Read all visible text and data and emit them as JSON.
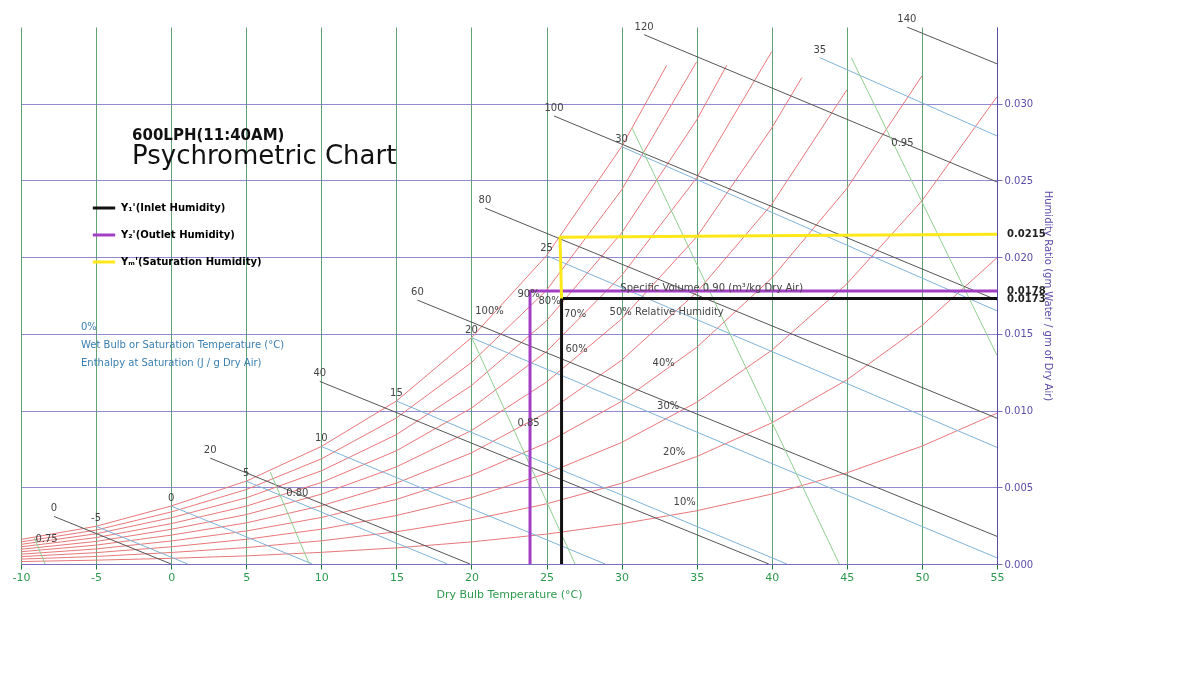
{
  "chart_data": {
    "type": "line",
    "title": "600LPH(11:40AM)",
    "subtitle": "Psychrometric Chart",
    "xlabel": "Dry Bulb Temperature (°C)",
    "ylabel": "Humidity Ratio (gm Water / gm of Dry Air)",
    "xlim": [
      -10,
      55
    ],
    "xticks": [
      -10,
      -5,
      0,
      5,
      10,
      15,
      20,
      25,
      30,
      35,
      40,
      45,
      50,
      55
    ],
    "ylim": [
      0,
      0.035
    ],
    "yticks": [
      {
        "value": 0,
        "label": "0.000"
      },
      0.005,
      {
        "value": 0.01,
        "label": "0.010"
      },
      0.015,
      {
        "value": 0.02,
        "label": "0.020"
      },
      0.025,
      {
        "value": 0.03,
        "label": "0.030"
      }
    ],
    "grid": true,
    "legend": "top left",
    "series": [
      {
        "color": "#e8777a",
        "x": [
          -10,
          -5,
          0,
          5,
          10,
          15,
          20,
          25,
          30,
          35,
          40,
          45,
          50,
          55
        ],
        "values": [
          0.00016,
          0.00025,
          0.00037,
          0.00053,
          0.00076,
          0.00105,
          0.00144,
          0.00195,
          0.00262,
          0.00347,
          0.00456,
          0.00594,
          0.00768,
          0.00983
        ]
      },
      {
        "color": "#e8777a",
        "x": [
          -10,
          -5,
          0,
          5,
          10,
          15,
          20,
          25,
          30,
          35,
          40,
          45,
          50,
          55
        ],
        "values": [
          0.00032,
          0.00049,
          0.00075,
          0.00107,
          0.00151,
          0.0021,
          0.00288,
          0.00392,
          0.00526,
          0.007,
          0.0092,
          0.012,
          0.01554,
          0.01996
        ]
      },
      {
        "color": "#e8777a",
        "x": [
          -10,
          -5,
          0,
          5,
          10,
          15,
          20,
          25,
          30,
          35,
          40,
          45,
          50,
          55
        ],
        "values": [
          0.00048,
          0.00074,
          0.00112,
          0.00161,
          0.00227,
          0.00316,
          0.00433,
          0.0059,
          0.00792,
          0.01054,
          0.01393,
          0.01826,
          0.02367,
          0.03046
        ]
      },
      {
        "color": "#e8777a",
        "x": [
          -10,
          -5,
          0,
          5,
          10,
          15,
          20,
          25,
          30,
          35,
          40,
          45,
          50
        ],
        "values": [
          0.00064,
          0.00098,
          0.0015,
          0.00215,
          0.00303,
          0.00421,
          0.00579,
          0.00789,
          0.0106,
          0.01412,
          0.01864,
          0.02447,
          0.03181
        ]
      },
      {
        "color": "#e8777a",
        "x": [
          -10,
          -5,
          0,
          5,
          10,
          15,
          20,
          25,
          30,
          35,
          40,
          45
        ],
        "values": [
          0.0008,
          0.00123,
          0.00188,
          0.00268,
          0.00379,
          0.00527,
          0.00724,
          0.00987,
          0.01328,
          0.01771,
          0.02345,
          0.0309
        ]
      },
      {
        "color": "#e8777a",
        "x": [
          -10,
          -5,
          0,
          5,
          10,
          15,
          20,
          25,
          30,
          35,
          40,
          42
        ],
        "values": [
          0.00096,
          0.00147,
          0.00226,
          0.00322,
          0.00455,
          0.00633,
          0.0087,
          0.01186,
          0.01597,
          0.02132,
          0.02842,
          0.0317
        ]
      },
      {
        "color": "#e8777a",
        "x": [
          -10,
          -5,
          0,
          5,
          10,
          15,
          20,
          25,
          30,
          35,
          40
        ],
        "values": [
          0.00112,
          0.00172,
          0.00263,
          0.00377,
          0.00531,
          0.00738,
          0.01016,
          0.01385,
          0.0188,
          0.02517,
          0.0334
        ]
      },
      {
        "color": "#e8777a",
        "x": [
          -10,
          -5,
          0,
          5,
          10,
          15,
          20,
          25,
          30,
          35,
          37
        ],
        "values": [
          0.00128,
          0.00197,
          0.00301,
          0.00431,
          0.00607,
          0.00843,
          0.01163,
          0.01585,
          0.02158,
          0.02894,
          0.0325
        ]
      },
      {
        "color": "#e8777a",
        "x": [
          -10,
          -5,
          0,
          5,
          10,
          15,
          20,
          25,
          30,
          35
        ],
        "values": [
          0.00144,
          0.00221,
          0.00339,
          0.00485,
          0.00685,
          0.00952,
          0.01313,
          0.01784,
          0.02438,
          0.03274
        ]
      },
      {
        "color": "#e8777a",
        "x": [
          -10,
          -5,
          0,
          5,
          10,
          15,
          20,
          25,
          30,
          33
        ],
        "values": [
          0.0016,
          0.00246,
          0.00378,
          0.0054,
          0.00766,
          0.01062,
          0.01475,
          0.0201,
          0.0272,
          0.0325
        ]
      },
      {
        "color": "#7fb3d9",
        "x": [
          -5,
          1.1
        ],
        "values": [
          0.00246,
          0
        ]
      },
      {
        "color": "#7fb3d9",
        "x": [
          0,
          9.4
        ],
        "values": [
          0.00378,
          0
        ]
      },
      {
        "color": "#7fb3d9",
        "x": [
          5,
          18.4
        ],
        "values": [
          0.0054,
          0
        ]
      },
      {
        "color": "#7fb3d9",
        "x": [
          10,
          28.9
        ],
        "values": [
          0.00766,
          0
        ]
      },
      {
        "color": "#7fb3d9",
        "x": [
          15,
          41
        ],
        "values": [
          0.01062,
          0
        ]
      },
      {
        "color": "#7fb3d9",
        "x": [
          20,
          55
        ],
        "values": [
          0.01475,
          0.0004
        ]
      },
      {
        "color": "#7fb3d9",
        "x": [
          25,
          55
        ],
        "values": [
          0.0201,
          0.0076
        ]
      },
      {
        "color": "#7fb3d9",
        "x": [
          30,
          55
        ],
        "values": [
          0.0272,
          0.0165
        ]
      },
      {
        "color": "#7fb3d9",
        "x": [
          43.2,
          55
        ],
        "values": [
          0.033,
          0.0279
        ]
      },
      {
        "color": "#555555",
        "x": [
          -7.8,
          0
        ],
        "values": [
          0.0031,
          0
        ]
      },
      {
        "color": "#555555",
        "x": [
          2.6,
          19.9
        ],
        "values": [
          0.0069,
          0
        ]
      },
      {
        "color": "#555555",
        "x": [
          9.9,
          39.8
        ],
        "values": [
          0.0119,
          0
        ]
      },
      {
        "color": "#555555",
        "x": [
          16.4,
          55
        ],
        "values": [
          0.0172,
          0.0018
        ]
      },
      {
        "color": "#555555",
        "x": [
          20.9,
          55
        ],
        "values": [
          0.0232,
          0.0095
        ]
      },
      {
        "color": "#555555",
        "x": [
          25.5,
          55
        ],
        "values": [
          0.0292,
          0.0172
        ]
      },
      {
        "color": "#555555",
        "x": [
          31.5,
          55
        ],
        "values": [
          0.0345,
          0.0249
        ]
      },
      {
        "color": "#555555",
        "x": [
          49,
          55
        ],
        "values": [
          0.035,
          0.0326
        ]
      },
      {
        "color": "#8fd08f",
        "x": [
          -9.1,
          -8.4
        ],
        "values": [
          0.0017,
          0
        ]
      },
      {
        "color": "#8fd08f",
        "x": [
          6.6,
          9.2
        ],
        "values": [
          0.006,
          0
        ]
      },
      {
        "color": "#8fd08f",
        "x": [
          20,
          26.9
        ],
        "values": [
          0.0148,
          0
        ]
      },
      {
        "color": "#8fd08f",
        "x": [
          30.7,
          44.5
        ],
        "values": [
          0.0284,
          0
        ]
      },
      {
        "color": "#8fd08f",
        "x": [
          45.3,
          55
        ],
        "values": [
          0.033,
          0.0136
        ]
      },
      {
        "name": "Y₁'(Inlet Humidity)",
        "color": "#111111",
        "x": [
          26,
          26,
          55
        ],
        "values": [
          0,
          0.0173,
          0.0173
        ]
      },
      {
        "name": "Y₂'(Outlet Humidity)",
        "color": "#a23fc4",
        "x": [
          23.9,
          23.9,
          55
        ],
        "values": [
          0,
          0.0178,
          0.0178
        ]
      },
      {
        "name": "Yₘ'(Saturation Humidity)",
        "color": "#ffe81a",
        "x": [
          26,
          25.9,
          55
        ],
        "values": [
          0.0173,
          0.0213,
          0.0215
        ]
      }
    ],
    "annotations": [
      {
        "text": "0.0215",
        "x": 55,
        "y": 0.0215
      },
      {
        "text": "0.0178",
        "x": 55,
        "y": 0.0178
      },
      {
        "text": "0.0173",
        "x": 55,
        "y": 0.0173
      },
      {
        "text": "100%",
        "x": 21.2,
        "y": 0.016
      },
      {
        "text": "90%",
        "x": 23.8,
        "y": 0.0171
      },
      {
        "text": "80%",
        "x": 25.2,
        "y": 0.0166
      },
      {
        "text": "70%",
        "x": 26.9,
        "y": 0.0158
      },
      {
        "text": "60%",
        "x": 27,
        "y": 0.0135
      },
      {
        "text": "50% Relative Humidity",
        "x": 33,
        "y": 0.0159
      },
      {
        "text": "40%",
        "x": 32.8,
        "y": 0.0126
      },
      {
        "text": "30%",
        "x": 33.1,
        "y": 0.0098
      },
      {
        "text": "20%",
        "x": 33.5,
        "y": 0.0068
      },
      {
        "text": "10%",
        "x": 34.2,
        "y": 0.0035
      },
      "0%",
      {
        "text": "-5",
        "x": -5,
        "y": 0.00246
      },
      {
        "text": "0",
        "x": 0,
        "y": 0.00378
      },
      {
        "text": "5",
        "x": 5,
        "y": 0.0054
      },
      {
        "text": "10",
        "x": 10,
        "y": 0.00766
      },
      {
        "text": "15",
        "x": 15,
        "y": 0.01062
      },
      {
        "text": "20",
        "x": 20,
        "y": 0.01475
      },
      {
        "text": "25",
        "x": 25,
        "y": 0.0201
      },
      {
        "text": "30",
        "x": 30,
        "y": 0.0272
      },
      {
        "text": "35",
        "x": 43.2,
        "y": 0.033
      },
      "Wet Bulb or Saturation Temperature (°C)",
      {
        "text": "0",
        "x": -7.8,
        "y": 0.0031
      },
      {
        "text": "20",
        "x": 2.6,
        "y": 0.0069
      },
      {
        "text": "40",
        "x": 9.9,
        "y": 0.0119
      },
      {
        "text": "60",
        "x": 16.4,
        "y": 0.0172
      },
      {
        "text": "80",
        "x": 20.9,
        "y": 0.0232
      },
      {
        "text": "100",
        "x": 25.5,
        "y": 0.0292
      },
      {
        "text": "120",
        "x": 31.5,
        "y": 0.0345
      },
      {
        "text": "140",
        "x": 49,
        "y": 0.035
      },
      "Enthalpy at Saturation (J / g Dry Air)",
      {
        "text": "0.75",
        "x": -8.3,
        "y": 0.0011
      },
      {
        "text": "0.80",
        "x": 8.4,
        "y": 0.0041
      },
      {
        "text": "0.85",
        "x": 23.8,
        "y": 0.0087
      },
      {
        "text": "Specific Volume 0.90 (m³/kg Dry Air)",
        "x": 36,
        "y": 0.0175
      },
      {
        "text": "0.95",
        "x": 48.7,
        "y": 0.0269
      }
    ]
  }
}
